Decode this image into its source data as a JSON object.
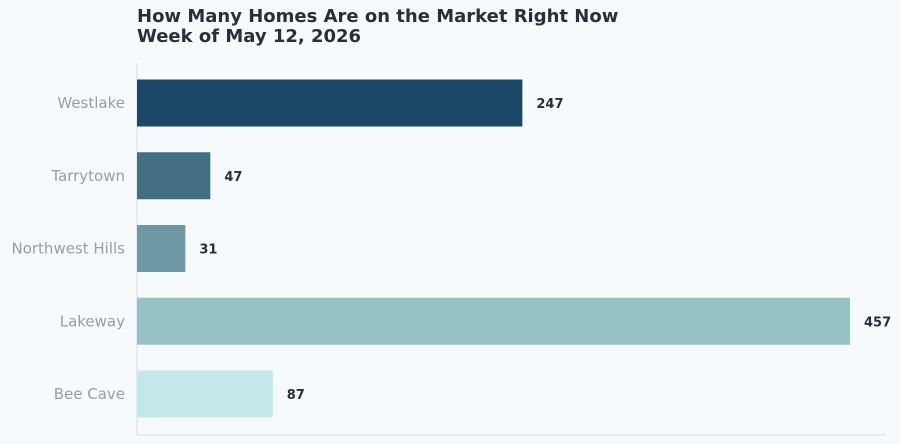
{
  "chart_data": {
    "type": "bar",
    "orientation": "horizontal",
    "title": "How Many Homes Are on the Market Right Now",
    "subtitle": "Week of May 12, 2026",
    "categories": [
      "Westlake",
      "Tarrytown",
      "Northwest Hills",
      "Lakeway",
      "Bee Cave"
    ],
    "values": [
      247,
      47,
      31,
      457,
      87
    ],
    "value_labels": [
      "247",
      "47",
      "31",
      "457",
      "87"
    ],
    "colors": [
      "#1c4767",
      "#446f82",
      "#6e98a5",
      "#97c2c5",
      "#c2e8e9"
    ],
    "xlim": [
      0,
      480
    ],
    "grid": false,
    "legend": "none"
  }
}
